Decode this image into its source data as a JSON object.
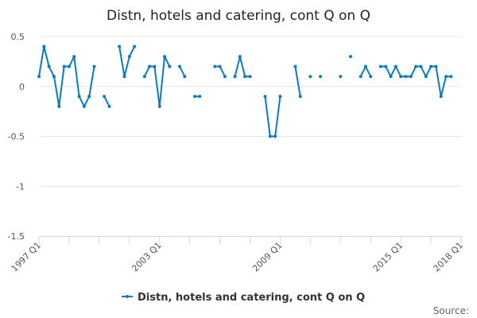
{
  "chart_data": {
    "type": "line",
    "title": "Distn, hotels and catering, cont Q on Q",
    "xlabel": "",
    "ylabel": "",
    "x_start": "1997 Q1",
    "x_tick_labels": [
      "1997 Q1",
      "2003 Q1",
      "2009 Q1",
      "2015 Q1",
      "2018 Q1"
    ],
    "y_ticks": [
      0.5,
      0,
      -0.5,
      -1,
      -1.5
    ],
    "y_tick_labels": [
      "0.5",
      "0",
      "-0.5",
      "-1",
      "-1.5"
    ],
    "ylim": [
      -1.5,
      0.5
    ],
    "xlim": [
      "1997 Q1",
      "2018 Q1"
    ],
    "grid": "horizontal",
    "legend_position": "bottom",
    "series": [
      {
        "name": "Distn, hotels and catering, cont Q on Q",
        "color": "#0a7bc1",
        "values": [
          0.1,
          0.4,
          0.2,
          0.1,
          -0.2,
          0.2,
          0.2,
          0.3,
          -0.1,
          -0.2,
          -0.1,
          0.2,
          null,
          -0.1,
          -0.2,
          null,
          0.4,
          0.1,
          0.3,
          0.4,
          null,
          0.1,
          0.2,
          0.2,
          -0.2,
          0.3,
          0.2,
          null,
          0.2,
          0.1,
          null,
          -0.1,
          -0.1,
          null,
          null,
          0.2,
          0.2,
          0.1,
          null,
          0.1,
          0.3,
          0.1,
          0.1,
          null,
          null,
          -0.1,
          -0.5,
          -0.5,
          -0.1,
          null,
          null,
          0.2,
          -0.1,
          null,
          0.1,
          null,
          0.1,
          null,
          null,
          null,
          0.1,
          null,
          0.3,
          null,
          0.1,
          0.2,
          0.1,
          null,
          0.2,
          0.2,
          0.1,
          0.2,
          0.1,
          0.1,
          0.1,
          0.2,
          0.2,
          0.1,
          0.2,
          0.2,
          -0.1,
          0.1,
          0.1
        ]
      }
    ]
  },
  "source_label": "Source:"
}
